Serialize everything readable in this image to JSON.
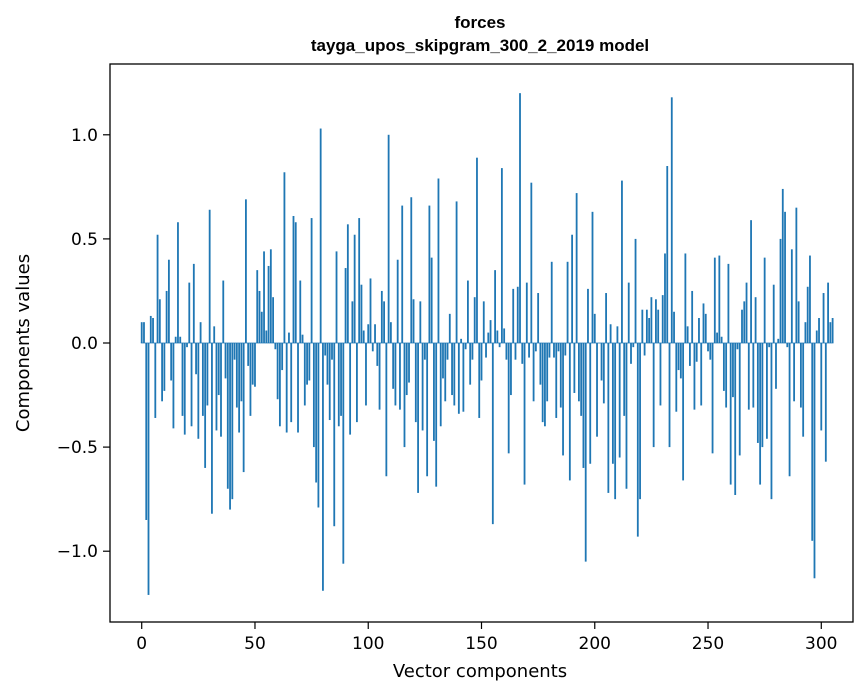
{
  "chart_data": {
    "type": "bar",
    "title": "forces",
    "subtitle": "tayga_upos_skipgram_300_2_2019 model",
    "xlabel": "Vector components",
    "ylabel": "Components values",
    "xlim": [
      -14,
      314
    ],
    "ylim": [
      -1.34,
      1.34
    ],
    "x_ticks": [
      0,
      50,
      100,
      150,
      200,
      250,
      300
    ],
    "x_tick_labels": [
      "0",
      "50",
      "100",
      "150",
      "200",
      "250",
      "300"
    ],
    "y_ticks": [
      -1.0,
      -0.5,
      0.0,
      0.5,
      1.0
    ],
    "y_tick_labels": [
      "−1.0",
      "−0.5",
      "0.0",
      "0.5",
      "1.0"
    ],
    "bar_color": "#1f77b4",
    "grid": false,
    "series": [
      {
        "values": [
          0.1,
          0.1,
          -0.85,
          -1.21,
          0.13,
          0.12,
          -0.36,
          0.52,
          0.21,
          -0.28,
          -0.23,
          0.25,
          0.4,
          -0.18,
          -0.41,
          0.03,
          0.58,
          0.03,
          -0.35,
          -0.44,
          -0.02,
          0.29,
          -0.4,
          0.38,
          -0.15,
          -0.46,
          0.1,
          -0.35,
          -0.6,
          -0.3,
          0.64,
          -0.82,
          0.08,
          -0.42,
          -0.25,
          -0.45,
          0.3,
          -0.17,
          -0.7,
          -0.8,
          -0.75,
          -0.08,
          -0.31,
          -0.43,
          -0.28,
          -0.62,
          0.69,
          -0.11,
          -0.35,
          -0.2,
          -0.21,
          0.35,
          0.25,
          0.15,
          0.44,
          0.06,
          0.37,
          0.45,
          0.22,
          -0.03,
          -0.27,
          -0.4,
          -0.13,
          0.82,
          -0.43,
          0.05,
          -0.38,
          0.61,
          0.58,
          -0.43,
          0.3,
          0.04,
          -0.3,
          -0.2,
          -0.18,
          0.6,
          -0.5,
          -0.67,
          -0.79,
          1.03,
          -1.19,
          -0.06,
          -0.2,
          -0.37,
          -0.08,
          -0.88,
          0.44,
          -0.4,
          -0.35,
          -1.06,
          0.36,
          0.57,
          -0.44,
          0.2,
          0.52,
          -0.38,
          0.6,
          0.28,
          0.06,
          -0.3,
          0.09,
          0.31,
          -0.04,
          0.09,
          -0.11,
          -0.32,
          0.25,
          0.2,
          -0.64,
          1.0,
          0.1,
          -0.22,
          -0.3,
          0.4,
          -0.32,
          0.66,
          -0.5,
          -0.25,
          -0.19,
          0.7,
          0.21,
          -0.38,
          -0.72,
          0.2,
          -0.42,
          -0.08,
          -0.64,
          0.66,
          0.41,
          -0.47,
          -0.69,
          0.79,
          -0.4,
          -0.17,
          -0.28,
          -0.08,
          0.14,
          -0.25,
          -0.3,
          0.68,
          -0.34,
          0.02,
          -0.33,
          -0.03,
          0.3,
          -0.2,
          -0.08,
          0.22,
          0.89,
          -0.36,
          -0.18,
          0.2,
          -0.07,
          0.05,
          0.11,
          -0.87,
          0.35,
          0.06,
          -0.02,
          0.84,
          0.07,
          -0.08,
          -0.53,
          -0.25,
          0.26,
          -0.08,
          0.27,
          1.2,
          -0.1,
          -0.68,
          0.29,
          -0.07,
          0.77,
          -0.28,
          -0.04,
          0.24,
          -0.2,
          -0.38,
          -0.4,
          -0.28,
          -0.07,
          0.39,
          -0.07,
          -0.36,
          -0.04,
          -0.31,
          -0.54,
          -0.06,
          0.39,
          -0.66,
          0.52,
          -0.24,
          0.72,
          -0.28,
          -0.35,
          -0.6,
          -1.05,
          0.26,
          -0.58,
          0.63,
          0.14,
          -0.45,
          0.0,
          -0.18,
          -0.29,
          0.24,
          -0.72,
          0.09,
          -0.58,
          -0.75,
          0.08,
          -0.55,
          0.78,
          -0.35,
          -0.7,
          0.29,
          -0.1,
          -0.02,
          0.5,
          -0.93,
          -0.75,
          0.16,
          -0.06,
          0.16,
          0.12,
          0.22,
          -0.5,
          0.21,
          0.16,
          -0.3,
          0.23,
          0.43,
          0.85,
          -0.5,
          1.18,
          0.15,
          -0.33,
          -0.13,
          -0.17,
          -0.66,
          0.43,
          0.08,
          -0.11,
          0.25,
          -0.32,
          -0.09,
          0.12,
          -0.3,
          0.19,
          0.14,
          -0.04,
          -0.08,
          -0.53,
          0.41,
          0.05,
          0.42,
          0.03,
          -0.23,
          -0.31,
          0.38,
          -0.68,
          -0.26,
          -0.73,
          -0.03,
          -0.54,
          0.16,
          0.2,
          0.29,
          -0.32,
          0.59,
          -0.31,
          0.22,
          -0.48,
          -0.68,
          -0.5,
          0.41,
          -0.46,
          -0.02,
          -0.75,
          0.28,
          -0.22,
          0.02,
          0.5,
          0.74,
          0.63,
          -0.02,
          -0.64,
          0.45,
          -0.28,
          0.65,
          0.2,
          -0.31,
          -0.45,
          0.1,
          0.27,
          0.42,
          -0.95,
          -1.13,
          0.06,
          0.12,
          -0.42,
          0.24,
          -0.57,
          0.29,
          0.1,
          0.12
        ]
      }
    ]
  }
}
